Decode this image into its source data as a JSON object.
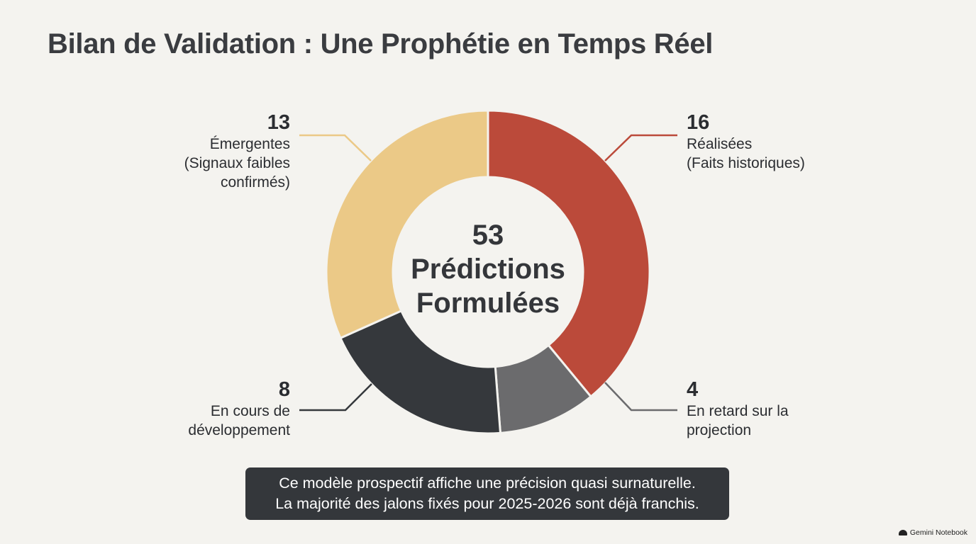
{
  "title": "Bilan de Validation : Une Prophétie en Temps Réel",
  "chart_data": {
    "type": "pie",
    "donut": true,
    "total": 53,
    "center_label": [
      "53",
      "Prédictions",
      "Formulées"
    ],
    "slices": [
      {
        "value": 16,
        "label": [
          "Réalisées",
          "(Faits historiques)"
        ],
        "color": "#bb4a3a"
      },
      {
        "value": 4,
        "label": [
          "En retard sur la",
          "projection"
        ],
        "color": "#6b6b6d"
      },
      {
        "value": 8,
        "label": [
          "En cours de",
          "développement"
        ],
        "color": "#35383c"
      },
      {
        "value": 13,
        "label": [
          "Émergentes",
          "(Signaux faibles",
          "confirmés)"
        ],
        "color": "#ebc987"
      }
    ],
    "legend": "none"
  },
  "callout": {
    "line1": "Ce modèle prospectif affiche une précision quasi surnaturelle.",
    "line2": "La majorité des jalons fixés pour 2025-2026 sont déjà franchis."
  },
  "watermark": {
    "text": "Gemini Notebook",
    "icon": "cloud-icon"
  }
}
